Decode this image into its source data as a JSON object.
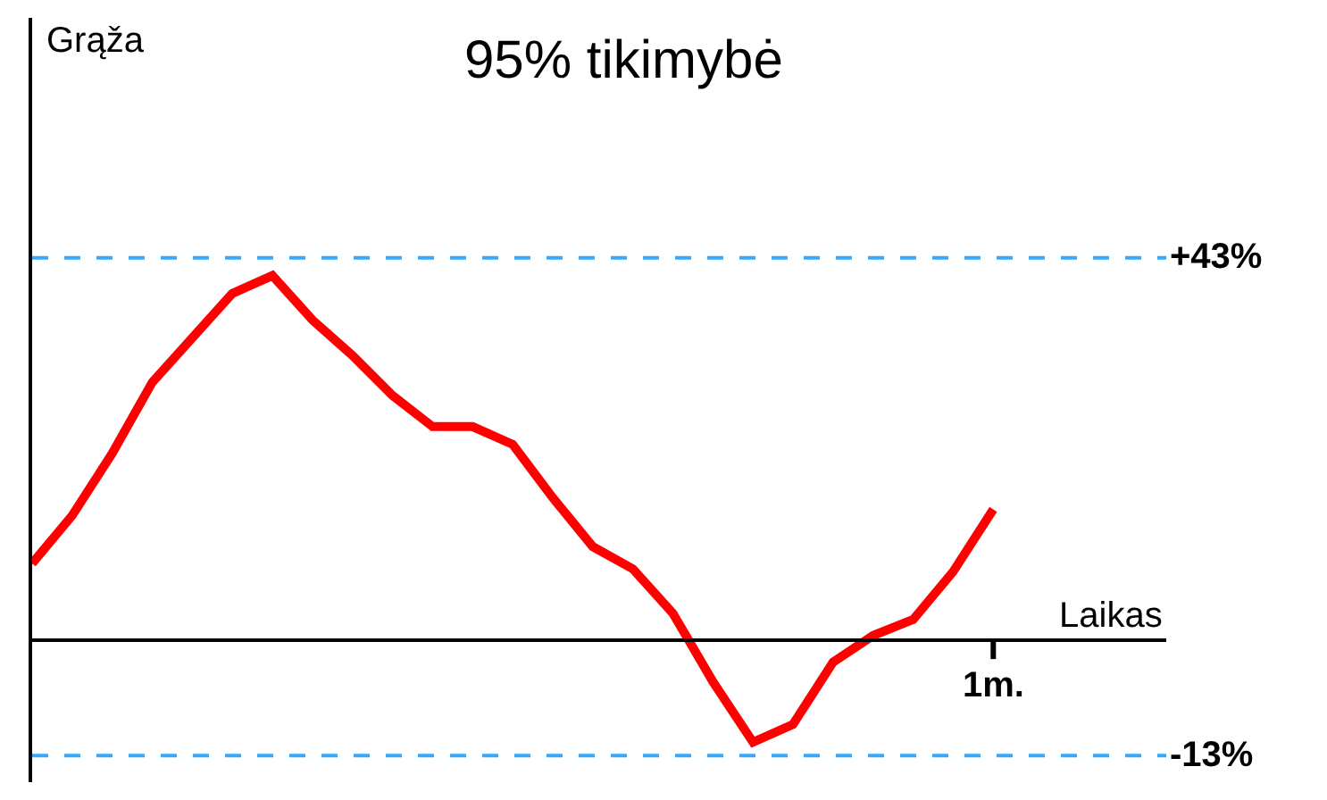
{
  "chart_data": {
    "type": "line",
    "title": "95% tikimybė",
    "xlabel": "Laikas",
    "ylabel": "Grąža",
    "categories": [
      null,
      null,
      null,
      null,
      null,
      null,
      null,
      null,
      null,
      null,
      null,
      null,
      null,
      null,
      null,
      null,
      null,
      null,
      null,
      null,
      null,
      null,
      null,
      null,
      null
    ],
    "series": [
      {
        "color": "#ff0000",
        "values": [
          8.6,
          14,
          21,
          29,
          34,
          39,
          41,
          36,
          32,
          27.5,
          24,
          24,
          22,
          16,
          10.5,
          8,
          3,
          -4.7,
          -11.5,
          -9.5,
          -2.5,
          0.5,
          2.3,
          7.7,
          14.7
        ]
      }
    ],
    "annotations": [
      "1m."
    ],
    "ylim": [
      -16,
      70
    ],
    "marker": "none",
    "line_style": "solid",
    "ref_lines": [
      {
        "axis": "y",
        "value": 43,
        "label": "+43%",
        "color": "#33aaff",
        "line_style": "dashed"
      },
      {
        "axis": "y",
        "value": -13,
        "label": "-13%",
        "color": "#33aaff",
        "line_style": "dashed"
      }
    ]
  }
}
